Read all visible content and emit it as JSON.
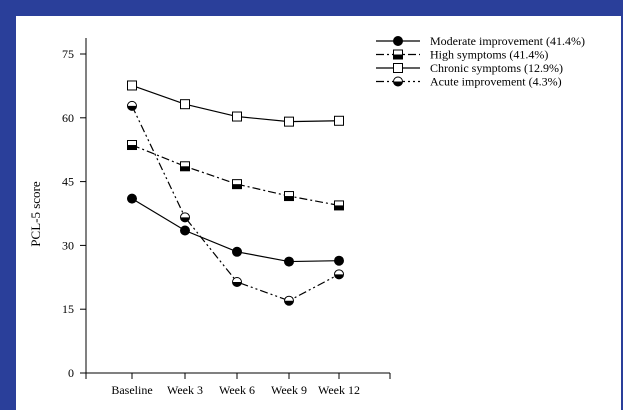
{
  "chart_data": {
    "type": "line",
    "title": "",
    "xlabel": "",
    "ylabel": "PCL-5 score",
    "categories": [
      "Baseline",
      "Week 3",
      "Week 6",
      "Week 9",
      "Week 12"
    ],
    "yticks": [
      0,
      15,
      30,
      45,
      60,
      75
    ],
    "ylim": [
      0,
      80
    ],
    "grid": false,
    "legend_position": "top-right",
    "series": [
      {
        "name": "Moderate improvement (41.4%)",
        "values": [
          41,
          33.5,
          28.5,
          26.2,
          26.4
        ],
        "marker": "filled-circle",
        "line": "solid"
      },
      {
        "name": "High symptoms (41.4%)",
        "values": [
          53.6,
          48.6,
          44.4,
          41.6,
          39.4
        ],
        "marker": "half-filled-square",
        "line": "dash-dot"
      },
      {
        "name": "Chronic symptoms (12.9%)",
        "values": [
          67.6,
          63.2,
          60.3,
          59.1,
          59.3
        ],
        "marker": "open-square",
        "line": "solid"
      },
      {
        "name": "Acute improvement (4.3%)",
        "values": [
          62.8,
          36.6,
          21.4,
          17,
          23.2
        ],
        "marker": "half-filled-circle",
        "line": "dash-dot-dot"
      }
    ]
  }
}
